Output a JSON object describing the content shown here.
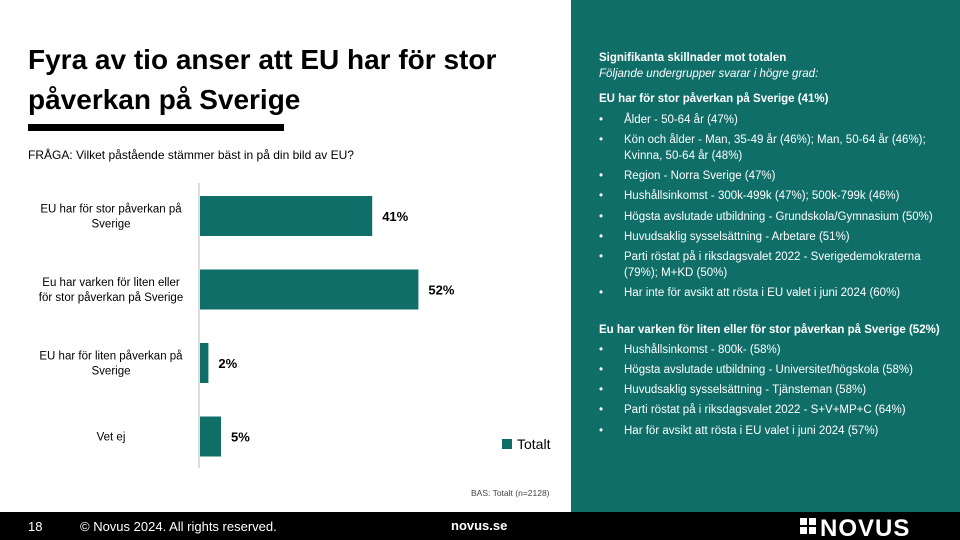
{
  "title": "Fyra av tio anser att EU har för stor påverkan på Sverige",
  "question": "FRÅGA: Vilket påstående stämmer bäst in på din bild av EU?",
  "colors": {
    "accent": "#0f6e68",
    "footer": "#000000"
  },
  "chart_data": {
    "type": "bar",
    "orientation": "horizontal",
    "categories": [
      [
        "EU har för stor påverkan på",
        "Sverige"
      ],
      [
        "Eu har varken för liten eller",
        "för stor påverkan på Sverige"
      ],
      [
        "EU har för liten påverkan på",
        "Sverige"
      ],
      [
        "Vet ej"
      ]
    ],
    "series": [
      {
        "name": "Totalt",
        "values": [
          41,
          52,
          2,
          5
        ]
      }
    ],
    "value_labels": [
      "41%",
      "52%",
      "2%",
      "5%"
    ],
    "xlim": [
      0,
      100
    ],
    "grid": false,
    "legend_position": "bottom-right"
  },
  "legend_label": "Totalt",
  "base_note": "BAS: Totalt (n=2128)",
  "panel": {
    "heading": "Signifikanta skillnader mot totalen",
    "subheading": "Följande undergrupper svarar i högre grad:",
    "sections": [
      {
        "title": "EU har för stor påverkan på Sverige (41%)",
        "items": [
          "Ålder - 50-64 år (47%)",
          "Kön och ålder - Man, 35-49 år (46%); Man, 50-64 år (46%); Kvinna, 50-64 år (48%)",
          "Region - Norra Sverige (47%)",
          "Hushållsinkomst - 300k-499k (47%); 500k-799k (46%)",
          "Högsta avslutade utbildning - Grundskola/Gymnasium (50%)",
          "Huvudsaklig sysselsättning - Arbetare (51%)",
          "Parti röstat på i riksdagsvalet 2022 - Sverigedemokraterna (79%); M+KD (50%)",
          "Har inte för avsikt att rösta i EU valet i juni 2024 (60%)"
        ]
      },
      {
        "title": "Eu har varken för liten eller för stor påverkan på Sverige (52%)",
        "items": [
          "Hushållsinkomst - 800k- (58%)",
          "Högsta avslutade utbildning - Universitet/högskola (58%)",
          "Huvudsaklig sysselsättning - Tjänsteman (58%)",
          "Parti röstat på i riksdagsvalet 2022 - S+V+MP+C (64%)",
          "Har för avsikt att rösta i EU valet i juni 2024 (57%)"
        ]
      }
    ]
  },
  "footer": {
    "page_number": "18",
    "copyright": "© Novus 2024. All rights reserved.",
    "url": "novus.se",
    "logo_text": "NOVUS"
  }
}
